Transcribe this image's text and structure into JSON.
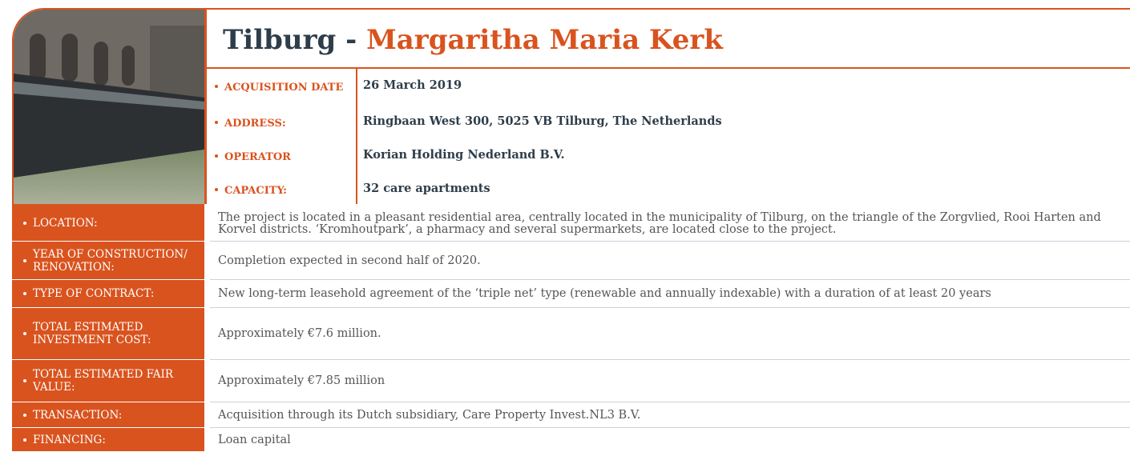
{
  "header": {
    "city": "Tilburg - ",
    "name": "Margaritha Maria Kerk"
  },
  "key_facts": [
    {
      "label": "ACQUISITION DATE",
      "value": "26 March 2019"
    },
    {
      "label": "ADDRESS:",
      "value": "Ringbaan West 300, 5025 VB Tilburg, The Netherlands"
    },
    {
      "label": "OPERATOR",
      "value": "Korian Holding Nederland B.V."
    },
    {
      "label": "CAPACITY:",
      "value": "32 care apartments"
    }
  ],
  "table": {
    "rows": [
      [
        "LOCATION:",
        "The project is located in a pleasant residential area, centrally located in the municipality of Tilburg, on the triangle of the Zorgvlied, Rooi Harten and Korvel districts. ‘Kromhoutpark’, a pharmacy and several supermarkets, are located close to the project."
      ],
      [
        "YEAR OF CONSTRUCTION/ RENOVATION:",
        "Completion expected in second half of 2020."
      ],
      [
        "TYPE OF CONTRACT:",
        "New long-term leasehold agreement of the ‘triple net’ type (renewable and annually indexable) with a duration of at least 20 years"
      ],
      [
        "TOTAL ESTIMATED INVESTMENT COST:",
        "Approximately €7.6 million."
      ],
      [
        "TOTAL ESTIMATED FAIR VALUE:",
        "Approximately €7.85 million"
      ],
      [
        "TRANSACTION:",
        "Acquisition through its Dutch subsidiary, Care Property Invest.NL3 B.V."
      ],
      [
        "FINANCING:",
        "Loan capital"
      ]
    ]
  }
}
